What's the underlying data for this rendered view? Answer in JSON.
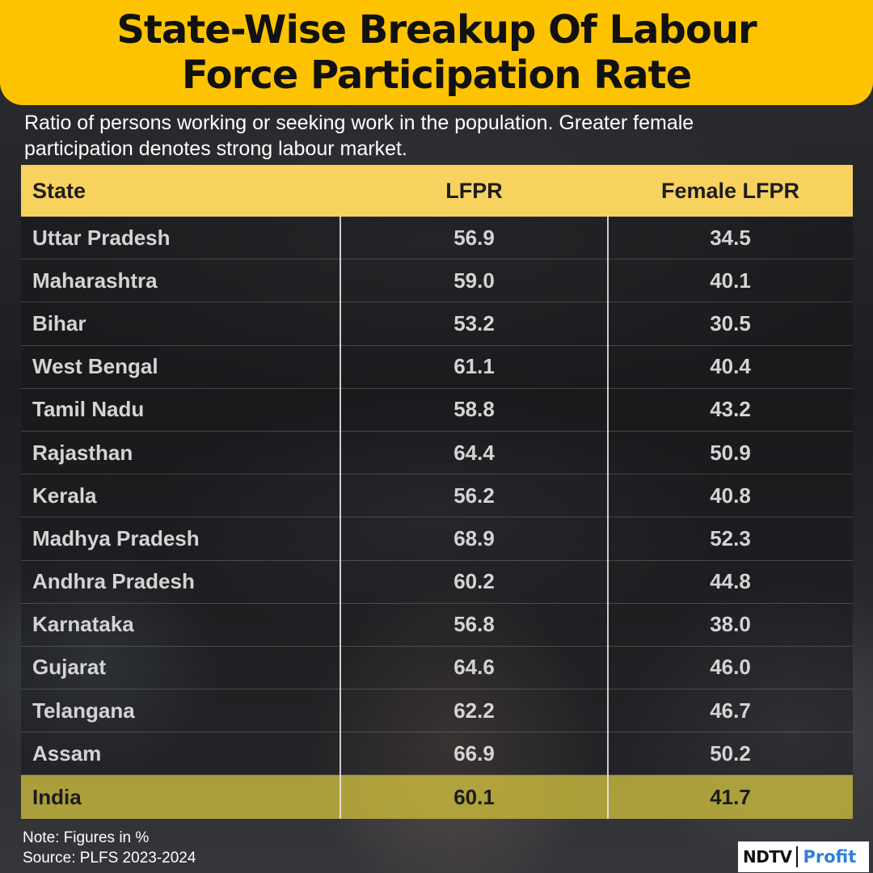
{
  "title": {
    "line1": "State-Wise Breakup Of Labour",
    "line2": "Force Participation Rate"
  },
  "subtitle": {
    "line1": "Ratio of persons working or seeking work in the population. Greater female",
    "line2": "participation denotes strong labour market."
  },
  "chart_data": {
    "type": "table",
    "columns": [
      "State",
      "LFPR",
      "Female LFPR"
    ],
    "rows": [
      [
        "Uttar Pradesh",
        "56.9",
        "34.5"
      ],
      [
        "Maharashtra",
        "59.0",
        "40.1"
      ],
      [
        "Bihar",
        "53.2",
        "30.5"
      ],
      [
        "West Bengal",
        "61.1",
        "40.4"
      ],
      [
        "Tamil Nadu",
        "58.8",
        "43.2"
      ],
      [
        "Rajasthan",
        "64.4",
        "50.9"
      ],
      [
        "Kerala",
        "56.2",
        "40.8"
      ],
      [
        "Madhya Pradesh",
        "68.9",
        "52.3"
      ],
      [
        "Andhra Pradesh",
        "60.2",
        "44.8"
      ],
      [
        "Karnataka",
        "56.8",
        "38.0"
      ],
      [
        "Gujarat",
        "64.6",
        "46.0"
      ],
      [
        "Telangana",
        "62.2",
        "46.7"
      ],
      [
        "Assam",
        "66.9",
        "50.2"
      ]
    ],
    "total_row": [
      "India",
      "60.1",
      "41.7"
    ]
  },
  "footer": {
    "note": "Note: Figures in %",
    "source": "Source: PLFS 2023-2024"
  },
  "logo": {
    "brand": "NDTV",
    "product": "Profit"
  },
  "colors": {
    "banner": "#fdc300",
    "header_row": "#f8d25f",
    "total_row": "#cdbe3c",
    "profit_blue": "#2f7fd8"
  }
}
